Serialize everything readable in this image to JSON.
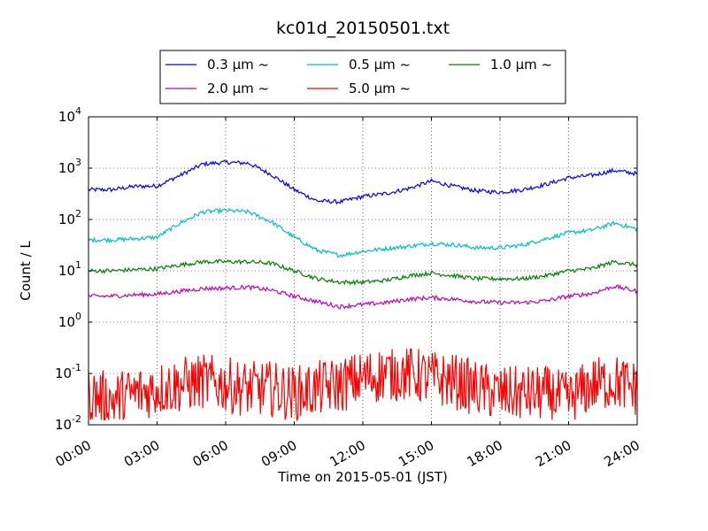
{
  "chart_data": {
    "type": "line",
    "title": "kc01d_20150501.txt",
    "xlabel": "Time on 2015-05-01 (JST)",
    "ylabel": "Count / L",
    "y_scale": "log",
    "ylim": [
      0.01,
      10000
    ],
    "xlim": [
      "00:00",
      "24:00"
    ],
    "x_tick_labels": [
      "00:00",
      "03:00",
      "06:00",
      "09:00",
      "12:00",
      "15:00",
      "18:00",
      "21:00",
      "24:00"
    ],
    "y_tick_labels": [
      {
        "base": "10",
        "exp": "-2"
      },
      {
        "base": "10",
        "exp": "-1"
      },
      {
        "base": "10",
        "exp": "0"
      },
      {
        "base": "10",
        "exp": "1"
      },
      {
        "base": "10",
        "exp": "2"
      },
      {
        "base": "10",
        "exp": "3"
      },
      {
        "base": "10",
        "exp": "4"
      }
    ],
    "grid": true,
    "legend_position": "top",
    "series": [
      {
        "name": "0.3 μm ~",
        "color": "#0000ff",
        "x_hours": [
          0,
          1,
          2,
          3,
          4,
          5,
          6,
          7,
          8,
          9,
          10,
          11,
          12,
          13,
          14,
          15,
          16,
          17,
          18,
          19,
          20,
          21,
          22,
          23,
          24
        ],
        "y": [
          380,
          380,
          440,
          450,
          720,
          1200,
          1300,
          1250,
          750,
          380,
          230,
          220,
          280,
          320,
          400,
          560,
          440,
          360,
          340,
          380,
          480,
          650,
          720,
          900,
          780
        ]
      },
      {
        "name": "0.5 μm ~",
        "color": "#00bfbf",
        "x_hours": [
          0,
          1,
          2,
          3,
          4,
          5,
          6,
          7,
          8,
          9,
          10,
          11,
          12,
          13,
          14,
          15,
          16,
          17,
          18,
          19,
          20,
          21,
          22,
          23,
          24
        ],
        "y": [
          40,
          40,
          42,
          45,
          85,
          140,
          150,
          140,
          90,
          45,
          25,
          20,
          24,
          27,
          30,
          34,
          32,
          28,
          28,
          32,
          42,
          55,
          62,
          85,
          65
        ]
      },
      {
        "name": "1.0 μm ~",
        "color": "#008000",
        "x_hours": [
          0,
          1,
          2,
          3,
          4,
          5,
          6,
          7,
          8,
          9,
          10,
          11,
          12,
          13,
          14,
          15,
          16,
          17,
          18,
          19,
          20,
          21,
          22,
          23,
          24
        ],
        "y": [
          10,
          10,
          10.5,
          11,
          13,
          15,
          15,
          15,
          14,
          10,
          7,
          6,
          6,
          6.5,
          8,
          9,
          8,
          7,
          7,
          7,
          8,
          10,
          11,
          15,
          13
        ]
      },
      {
        "name": "2.0 μm ~",
        "color": "#bf00bf",
        "x_hours": [
          0,
          1,
          2,
          3,
          4,
          5,
          6,
          7,
          8,
          9,
          10,
          11,
          12,
          13,
          14,
          15,
          16,
          17,
          18,
          19,
          20,
          21,
          22,
          23,
          24
        ],
        "y": [
          3.2,
          3.2,
          3.4,
          3.5,
          4,
          4.5,
          4.6,
          4.8,
          4.2,
          3.2,
          2.5,
          2.0,
          2.2,
          2.4,
          2.8,
          3.0,
          2.8,
          2.5,
          2.4,
          2.4,
          2.6,
          3.2,
          3.6,
          5.0,
          4.0
        ]
      },
      {
        "name": "5.0 μm ~",
        "color": "#ff0000",
        "x_hours": [
          0,
          1,
          2,
          3,
          4,
          5,
          6,
          7,
          8,
          9,
          10,
          11,
          12,
          13,
          14,
          15,
          16,
          17,
          18,
          19,
          20,
          21,
          22,
          23,
          24
        ],
        "y": [
          0.04,
          0.03,
          0.04,
          0.05,
          0.06,
          0.07,
          0.06,
          0.05,
          0.05,
          0.04,
          0.05,
          0.06,
          0.08,
          0.1,
          0.1,
          0.08,
          0.07,
          0.05,
          0.04,
          0.04,
          0.04,
          0.03,
          0.06,
          0.07,
          0.05
        ],
        "noisy": true
      }
    ]
  }
}
